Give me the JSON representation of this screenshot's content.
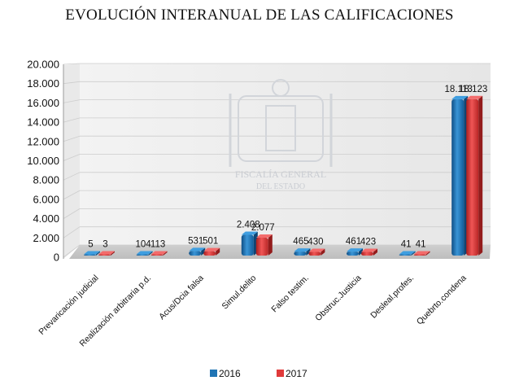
{
  "chart_data": {
    "type": "bar",
    "title": "EVOLUCIÓN INTERANUAL DE LAS CALIFICACIONES",
    "xlabel": "",
    "ylabel": "",
    "ylim": [
      0,
      20000
    ],
    "yticks": [
      "0",
      "2.000",
      "4.000",
      "6.000",
      "8.000",
      "10.000",
      "12.000",
      "14.000",
      "16.000",
      "18.000",
      "20.000"
    ],
    "grid": true,
    "legend_position": "bottom",
    "categories": [
      "Prevaricación judicial",
      "Realización arbitraria p.d.",
      "Acus/Dcia falsa",
      "Simul.delito",
      "Falso testim.",
      "Obstruc.Justicia",
      "Desleal.profes.",
      "Quebrto.condena"
    ],
    "series": [
      {
        "name": "2016",
        "color": "#1f74b4",
        "values": [
          5,
          104,
          531,
          2408,
          465,
          461,
          41,
          18113
        ],
        "labels": [
          "5",
          "104",
          "531",
          "2.408",
          "465",
          "461",
          "41",
          "18.113"
        ]
      },
      {
        "name": "2017",
        "color": "#e03a3a",
        "values": [
          3,
          113,
          501,
          2077,
          430,
          423,
          41,
          18123
        ],
        "labels": [
          "3",
          "113",
          "501",
          "2.077",
          "430",
          "423",
          "41",
          "18.123"
        ]
      }
    ],
    "watermark": [
      "FISCALÍA GENERAL",
      "DEL ESTADO"
    ]
  }
}
